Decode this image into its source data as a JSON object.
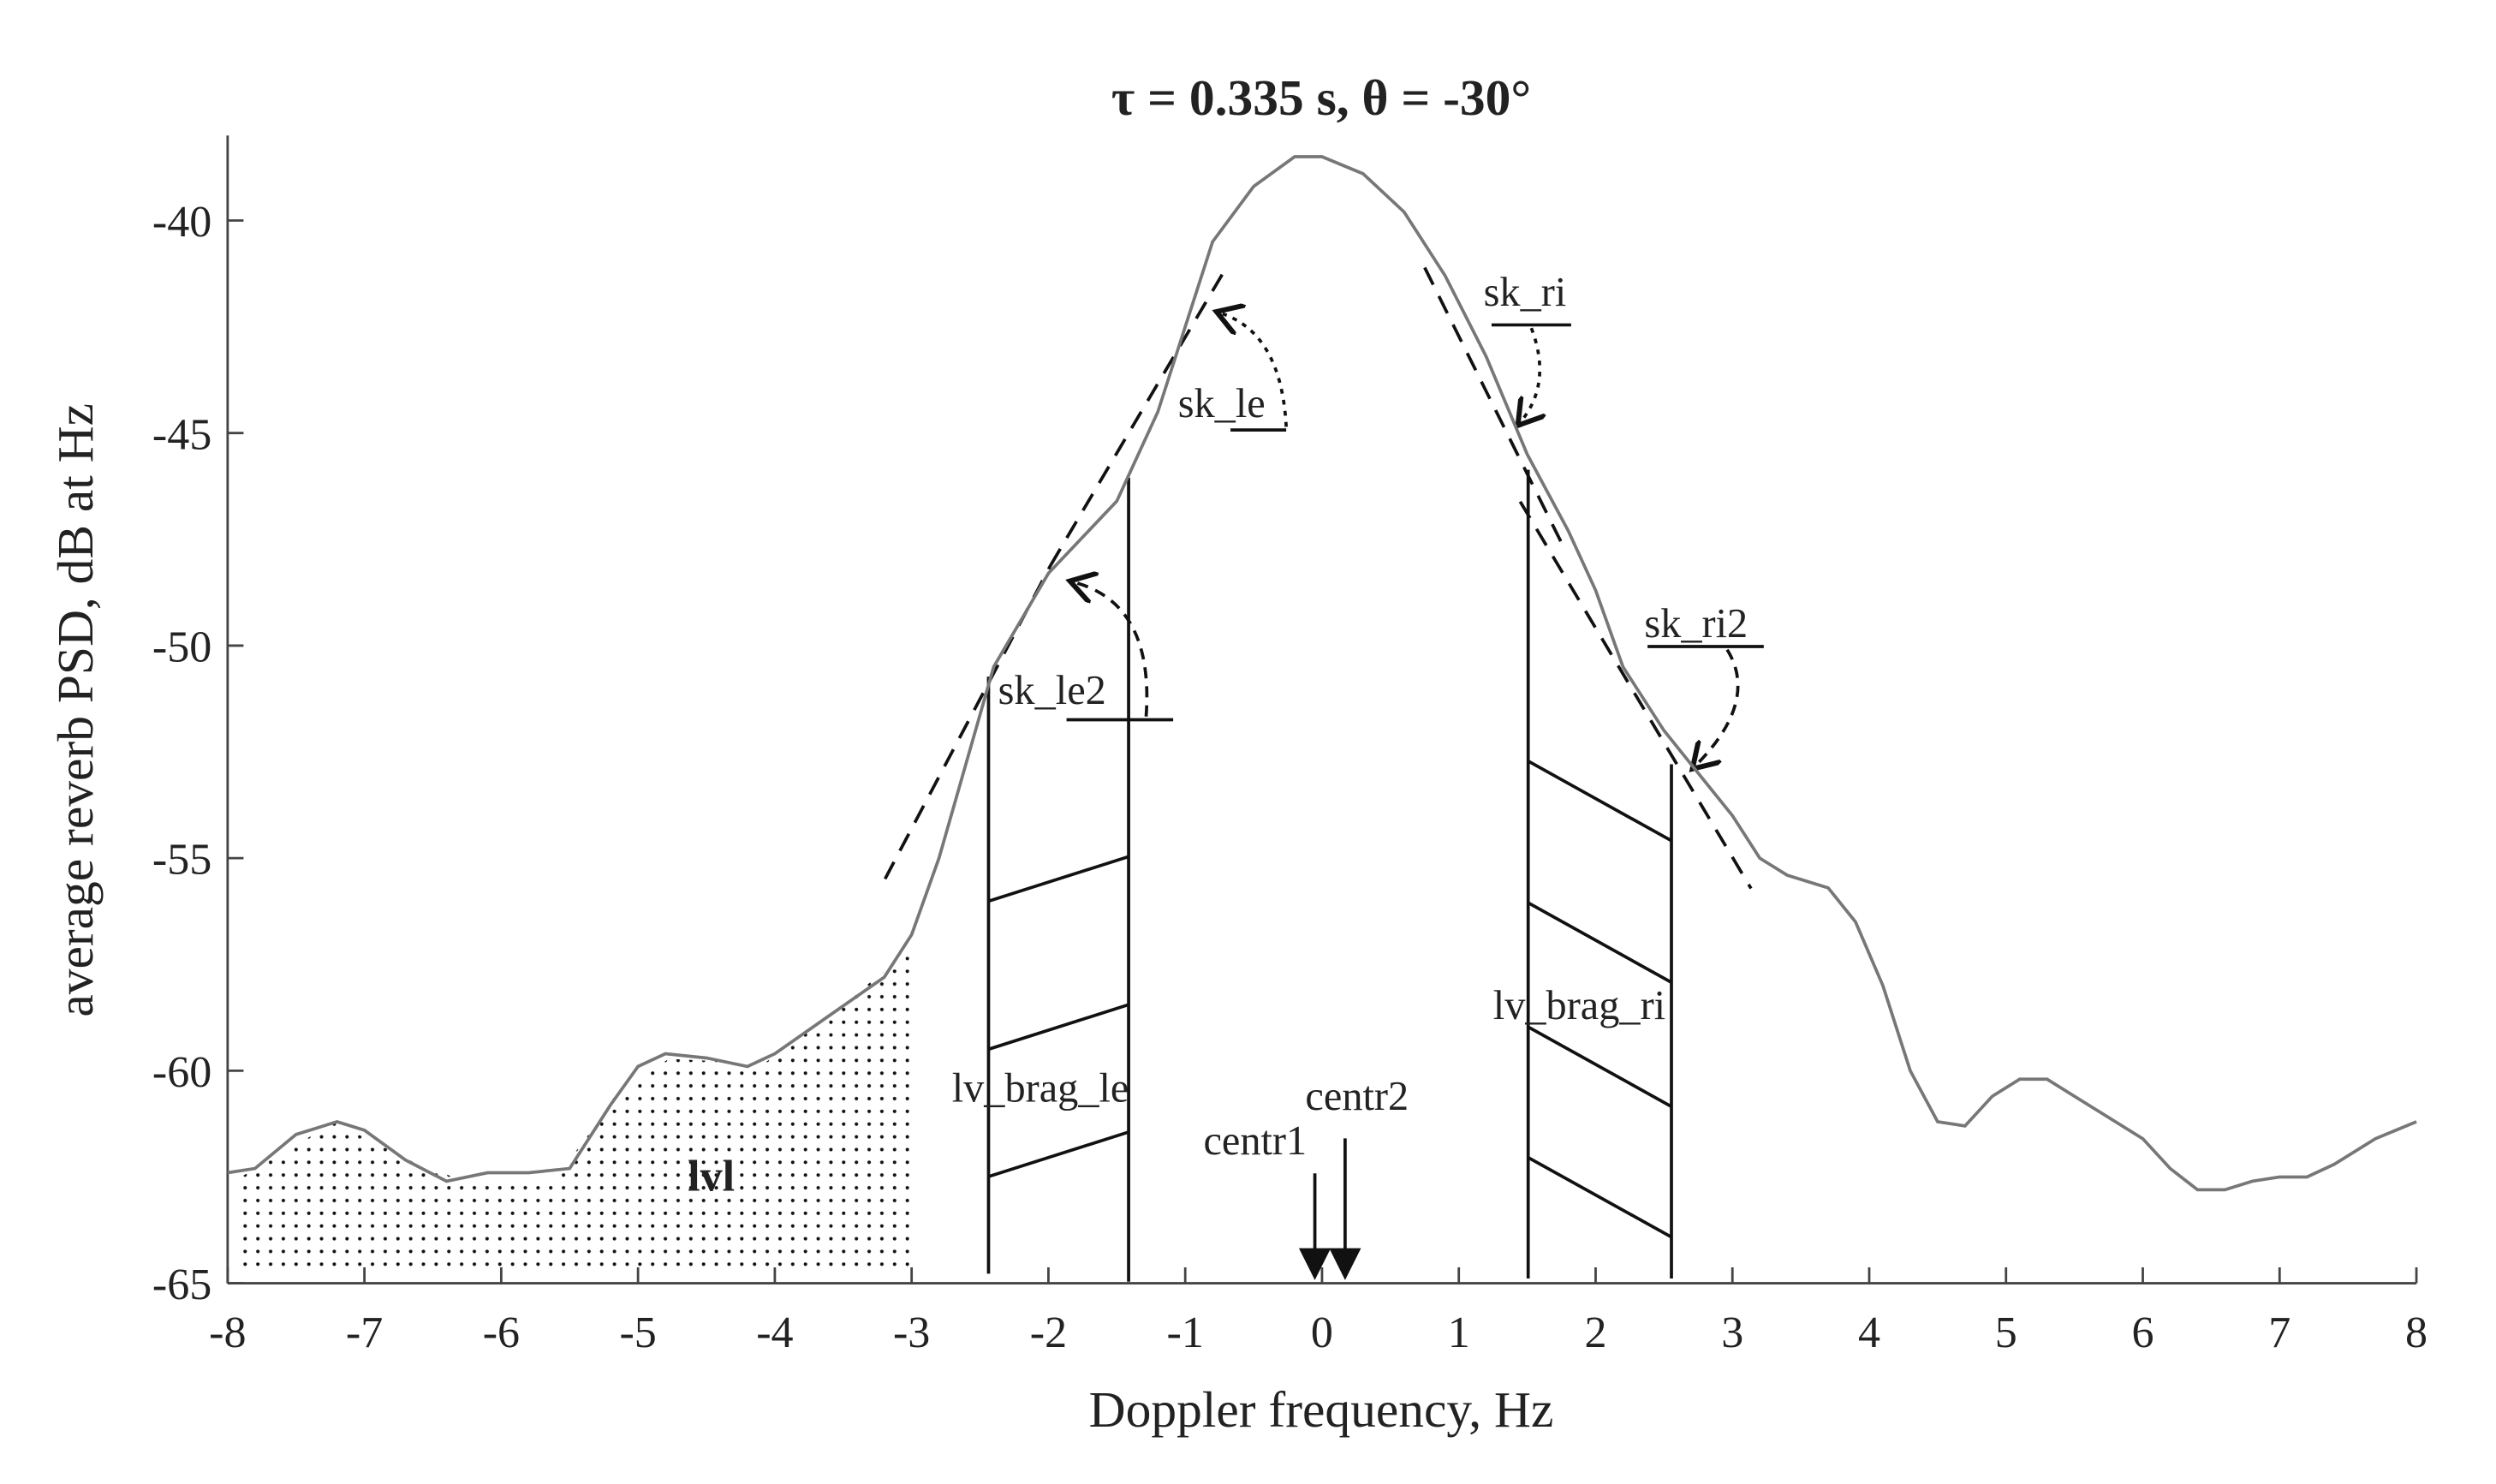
{
  "chart_data": {
    "type": "line",
    "title": "τ = 0.335 s, θ = -30°",
    "x_label": "Doppler frequency, Hz",
    "y_label": "average reverb PSD, dB at Hz",
    "x": [
      -8,
      -7.8,
      -7.5,
      -7.2,
      -7,
      -6.7,
      -6.4,
      -6.1,
      -5.8,
      -5.5,
      -5.2,
      -5,
      -4.8,
      -4.5,
      -4.2,
      -4,
      -3.6,
      -3.2,
      -3,
      -2.8,
      -2.4,
      -2,
      -1.5,
      -1.2,
      -1,
      -0.8,
      -0.5,
      -0.2,
      0,
      0.3,
      0.6,
      0.9,
      1.2,
      1.5,
      1.8,
      2,
      2.2,
      2.5,
      2.8,
      3,
      3.2,
      3.4,
      3.7,
      3.9,
      4.1,
      4.3,
      4.5,
      4.7,
      4.9,
      5.1,
      5.3,
      5.5,
      5.8,
      6,
      6.2,
      6.4,
      6.6,
      6.8,
      7,
      7.2,
      7.4,
      7.7,
      8
    ],
    "series": [
      {
        "name": "PSD",
        "color": "#777777",
        "values": [
          -62.4,
          -62.3,
          -61.5,
          -61.2,
          -61.4,
          -62.1,
          -62.6,
          -62.4,
          -62.4,
          -62.3,
          -60.8,
          -59.9,
          -59.6,
          -59.7,
          -59.9,
          -59.6,
          -58.7,
          -57.8,
          -56.8,
          -55.0,
          -50.5,
          -48.3,
          -46.6,
          -44.5,
          -42.5,
          -40.5,
          -39.2,
          -38.5,
          -38.5,
          -38.9,
          -39.8,
          -41.3,
          -43.2,
          -45.5,
          -47.3,
          -48.7,
          -50.5,
          -52.0,
          -53.2,
          -54.0,
          -55.0,
          -55.4,
          -55.7,
          -56.5,
          -58.0,
          -60.0,
          -61.2,
          -61.3,
          -60.6,
          -60.2,
          -60.2,
          -60.6,
          -61.2,
          -61.6,
          -62.3,
          -62.8,
          -62.8,
          -62.6,
          -62.5,
          -62.5,
          -62.2,
          -61.6,
          -61.2
        ]
      }
    ],
    "xlim": [
      -8,
      8
    ],
    "ylim": [
      -65,
      -38
    ],
    "xticks": [
      -8,
      -7,
      -6,
      -5,
      -4,
      -3,
      -2,
      -1,
      0,
      1,
      2,
      3,
      4,
      5,
      6,
      7,
      8
    ],
    "yticks": [
      -65,
      -60,
      -55,
      -50,
      -45,
      -40
    ],
    "annotations": [
      "sk_le",
      "sk_ri",
      "sk_le2",
      "sk_ri2",
      "lv_brag_le",
      "lv_brag_ri",
      "centr1",
      "centr2",
      "lvl"
    ]
  }
}
